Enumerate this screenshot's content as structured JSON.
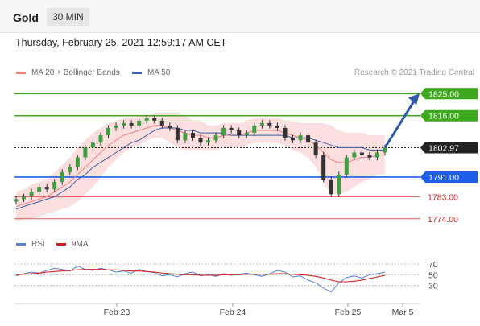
{
  "header": {
    "instrument": "Gold",
    "timeframe": "30 MIN"
  },
  "timestamp": "Thursday, February 25, 2021 12:59:17 AM CET",
  "legend": {
    "items": [
      {
        "label": "MA 20 + Bollinger Bands",
        "color": "#f08080"
      },
      {
        "label": "MA 50",
        "color": "#3a5ea8"
      }
    ],
    "credit": "Research © 2021 Trading Central"
  },
  "rsi_legend": {
    "items": [
      {
        "label": "RSI",
        "color": "#5b7fd6"
      },
      {
        "label": "9MA",
        "color": "#d62020"
      }
    ]
  },
  "chart_data": {
    "type": "line",
    "x_tick_labels": [
      "Feb 23",
      "Feb 24",
      "Feb 25",
      "Mar 5"
    ],
    "price_levels": [
      {
        "value": 1825.0,
        "label": "1825.00",
        "kind": "resistance",
        "color": "#3ea81e"
      },
      {
        "value": 1816.0,
        "label": "1816.00",
        "kind": "resistance",
        "color": "#3ea81e"
      },
      {
        "value": 1802.97,
        "label": "1802.97",
        "kind": "last",
        "color": "#222222"
      },
      {
        "value": 1791.0,
        "label": "1791.00",
        "kind": "pivot",
        "color": "#1f5ee8"
      },
      {
        "value": 1783.0,
        "label": "1783.00",
        "kind": "support",
        "color": "#d62020"
      },
      {
        "value": 1774.0,
        "label": "1774.00",
        "kind": "support",
        "color": "#d62020"
      }
    ],
    "y_range": [
      1770,
      1831
    ],
    "price_series": [
      1782,
      1783,
      1785,
      1787,
      1786,
      1789,
      1793,
      1795,
      1799,
      1803,
      1805,
      1808,
      1811,
      1812,
      1813,
      1812,
      1814,
      1815,
      1814,
      1812,
      1811,
      1806,
      1809,
      1807,
      1805,
      1806,
      1808,
      1811,
      1810,
      1808,
      1809,
      1812,
      1813,
      1812,
      1811,
      1807,
      1806,
      1808,
      1805,
      1800,
      1790,
      1784,
      1792,
      1799,
      1801,
      1800,
      1799,
      1801,
      1803
    ],
    "ma50": [
      1778,
      1779,
      1780,
      1781,
      1782,
      1783,
      1785,
      1787,
      1790,
      1792,
      1795,
      1797,
      1799,
      1801,
      1803,
      1805,
      1806,
      1808,
      1810,
      1811,
      1811,
      1811,
      1810,
      1810,
      1809,
      1809,
      1809,
      1809,
      1808,
      1808,
      1808,
      1808,
      1808,
      1808,
      1808,
      1808,
      1807,
      1807,
      1807,
      1806,
      1805,
      1804,
      1803,
      1803,
      1803,
      1803,
      1802,
      1802,
      1802
    ],
    "ma20": [
      1779,
      1780,
      1781,
      1782,
      1783,
      1785,
      1787,
      1789,
      1792,
      1795,
      1798,
      1801,
      1804,
      1806,
      1808,
      1809,
      1810,
      1811,
      1812,
      1812,
      1811,
      1810,
      1809,
      1808,
      1808,
      1807,
      1807,
      1808,
      1808,
      1808,
      1809,
      1810,
      1810,
      1810,
      1810,
      1809,
      1808,
      1807,
      1806,
      1804,
      1801,
      1798,
      1797,
      1797,
      1798,
      1799,
      1799,
      1800,
      1800
    ],
    "bb_width": [
      6,
      6,
      7,
      7,
      7,
      8,
      9,
      10,
      11,
      11,
      11,
      10,
      9,
      8,
      7,
      6,
      6,
      5,
      5,
      5,
      6,
      7,
      7,
      6,
      6,
      5,
      5,
      5,
      5,
      5,
      5,
      5,
      5,
      5,
      5,
      5,
      6,
      6,
      7,
      9,
      12,
      14,
      13,
      12,
      11,
      10,
      9,
      8,
      8
    ],
    "forecast_target": 1825.0,
    "rsi": {
      "y_range": [
        10,
        85
      ],
      "ticks": [
        70,
        50,
        30
      ],
      "rsi_series": [
        48,
        52,
        55,
        53,
        58,
        62,
        60,
        57,
        66,
        60,
        58,
        62,
        59,
        55,
        57,
        53,
        60,
        56,
        54,
        48,
        50,
        46,
        52,
        55,
        48,
        50,
        47,
        52,
        49,
        51,
        53,
        50,
        47,
        52,
        58,
        55,
        46,
        48,
        40,
        35,
        25,
        18,
        35,
        45,
        48,
        44,
        50,
        52,
        55
      ],
      "ma9_series": [
        50,
        51,
        52,
        53,
        55,
        56,
        57,
        58,
        59,
        60,
        60,
        60,
        59,
        59,
        58,
        57,
        57,
        56,
        55,
        53,
        52,
        51,
        50,
        50,
        49,
        49,
        49,
        50,
        50,
        50,
        51,
        51,
        51,
        51,
        52,
        52,
        51,
        50,
        49,
        47,
        44,
        40,
        37,
        37,
        38,
        40,
        43,
        46,
        49
      ]
    }
  }
}
